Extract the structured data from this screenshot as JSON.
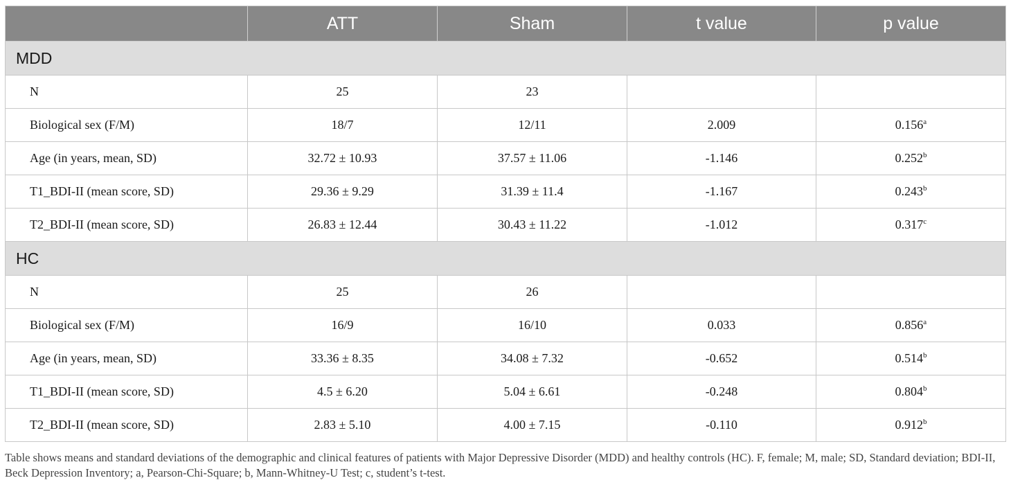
{
  "table": {
    "headers": [
      "",
      "ATT",
      "Sham",
      "t value",
      "p value"
    ],
    "groups": [
      {
        "name": "MDD",
        "rows": [
          {
            "label": "N",
            "att": "25",
            "sham": "23",
            "t": "",
            "p": "",
            "p_sup": ""
          },
          {
            "label": "Biological sex (F/M)",
            "att": "18/7",
            "sham": "12/11",
            "t": "2.009",
            "p": "0.156",
            "p_sup": "a"
          },
          {
            "label": "Age (in years, mean, SD)",
            "att": "32.72 ± 10.93",
            "sham": "37.57 ± 11.06",
            "t": "-1.146",
            "p": "0.252",
            "p_sup": "b"
          },
          {
            "label": "T1_BDI-II (mean score, SD)",
            "att": "29.36 ± 9.29",
            "sham": "31.39 ± 11.4",
            "t": "-1.167",
            "p": "0.243",
            "p_sup": "b"
          },
          {
            "label": "T2_BDI-II (mean score, SD)",
            "att": "26.83 ± 12.44",
            "sham": "30.43 ± 11.22",
            "t": "-1.012",
            "p": "0.317",
            "p_sup": "c"
          }
        ]
      },
      {
        "name": "HC",
        "rows": [
          {
            "label": "N",
            "att": "25",
            "sham": "26",
            "t": "",
            "p": "",
            "p_sup": ""
          },
          {
            "label": "Biological sex (F/M)",
            "att": "16/9",
            "sham": "16/10",
            "t": "0.033",
            "p": "0.856",
            "p_sup": "a"
          },
          {
            "label": "Age (in years, mean, SD)",
            "att": "33.36 ± 8.35",
            "sham": "34.08 ± 7.32",
            "t": "-0.652",
            "p": "0.514",
            "p_sup": "b"
          },
          {
            "label": "T1_BDI-II (mean score, SD)",
            "att": "4.5 ± 6.20",
            "sham": "5.04 ± 6.61",
            "t": "-0.248",
            "p": "0.804",
            "p_sup": "b"
          },
          {
            "label": "T2_BDI-II (mean score, SD)",
            "att": "2.83 ± 5.10",
            "sham": "4.00 ± 7.15",
            "t": "-0.110",
            "p": "0.912",
            "p_sup": "b"
          }
        ]
      }
    ]
  },
  "footnote": "Table shows means and standard deviations of the demographic and clinical features of patients with Major Depressive Disorder (MDD) and healthy controls (HC). F, female; M, male; SD, Standard deviation; BDI-II, Beck Depression Inventory; a, Pearson-Chi-Square; b, Mann-Whitney-U Test; c, student’s t-test."
}
